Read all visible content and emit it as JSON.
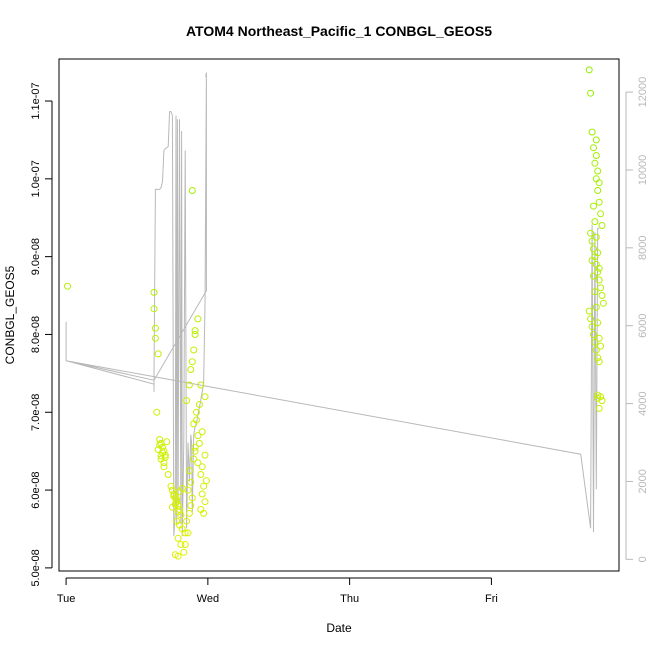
{
  "chart_data": {
    "type": "scatter",
    "title": "ATOM4 Northeast_Pacific_1 CONBGL_GEOS5",
    "xlabel": "Date",
    "ylabel": "CONBGL_GEOS5",
    "x_ticks": [
      "Tue",
      "Wed",
      "Thu",
      "Fri"
    ],
    "x_units": "days since Tue 00:00",
    "xlim": [
      -0.05,
      3.9
    ],
    "y_ticks": [
      "5.0e-08",
      "6.0e-08",
      "7.0e-08",
      "8.0e-08",
      "9.0e-08",
      "1.0e-07",
      "1.1e-07"
    ],
    "y_tick_values": [
      5e-08,
      6e-08,
      7e-08,
      8e-08,
      9e-08,
      1e-07,
      1.1e-07
    ],
    "ylim": [
      4.96e-08,
      1.154e-07
    ],
    "y2_ticks": [
      "0",
      "2000",
      "4000",
      "6000",
      "8000",
      "10000",
      "12000"
    ],
    "y2_tick_values": [
      0,
      2000,
      4000,
      6000,
      8000,
      10000,
      12000
    ],
    "y2lim": [
      -300,
      12850
    ],
    "colors": {
      "points_low": "#e0f000",
      "points_high": "#90f000",
      "altitude_line": "#b8b8b8",
      "right_axis": "#b8b8b8"
    },
    "series": [
      {
        "name": "CONBGL_GEOS5",
        "x": [
          0.01,
          0.62,
          0.62,
          0.63,
          0.63,
          0.65,
          0.64,
          0.66,
          0.67,
          0.68,
          0.69,
          0.7,
          0.67,
          0.69,
          0.71,
          0.66,
          0.68,
          0.7,
          0.72,
          0.65,
          0.67,
          0.69,
          0.74,
          0.75,
          0.76,
          0.77,
          0.78,
          0.79,
          0.8,
          0.76,
          0.78,
          0.8,
          0.82,
          0.75,
          0.77,
          0.79,
          0.81,
          0.78,
          0.8,
          0.82,
          0.84,
          0.79,
          0.81,
          0.83,
          0.77,
          0.79,
          0.84,
          0.86,
          0.85,
          0.87,
          0.88,
          0.89,
          0.86,
          0.88,
          0.87,
          0.9,
          0.91,
          0.93,
          0.9,
          0.92,
          0.94,
          0.91,
          0.93,
          0.95,
          0.97,
          0.96,
          0.98,
          0.95,
          0.97,
          0.99,
          0.96,
          0.98,
          0.94,
          0.96,
          0.92,
          0.85,
          0.87,
          0.88,
          0.89,
          0.9,
          0.91,
          0.93,
          0.95,
          0.98,
          0.89,
          0.91,
          3.69,
          3.7,
          3.71,
          3.72,
          3.73,
          3.74,
          3.75,
          3.76,
          3.77,
          3.78,
          3.7,
          3.71,
          3.72,
          3.73,
          3.74,
          3.75,
          3.76,
          3.77,
          3.78,
          3.79,
          3.69,
          3.7,
          3.71,
          3.72,
          3.73,
          3.74,
          3.75,
          3.76,
          3.77,
          3.78,
          3.71,
          3.72,
          3.73,
          3.74,
          3.75,
          3.76,
          3.77,
          3.72,
          3.73,
          3.74,
          3.75,
          3.76,
          3.74,
          3.75,
          3.76,
          3.74,
          3.75,
          3.75,
          3.76
        ],
        "y": [
          8.62e-08,
          8.54e-08,
          8.33e-08,
          8.08e-08,
          7.95e-08,
          7.75e-08,
          7e-08,
          6.65e-08,
          6.6e-08,
          6.55e-08,
          6.5e-08,
          6.45e-08,
          6.4e-08,
          6.35e-08,
          6.62e-08,
          6.58e-08,
          6.48e-08,
          6.42e-08,
          6.2e-08,
          6.52e-08,
          6.44e-08,
          6.3e-08,
          6.05e-08,
          6e-08,
          5.95e-08,
          5.9e-08,
          5.85e-08,
          5.8e-08,
          5.75e-08,
          5.92e-08,
          5.88e-08,
          5.98e-08,
          6.02e-08,
          5.78e-08,
          5.82e-08,
          5.72e-08,
          5.68e-08,
          5.6e-08,
          5.55e-08,
          5.5e-08,
          5.45e-08,
          5.38e-08,
          5.3e-08,
          5.2e-08,
          5.17e-08,
          5.15e-08,
          5.3e-08,
          5.45e-08,
          5.6e-08,
          5.7e-08,
          5.8e-08,
          5.9e-08,
          6e-08,
          6.1e-08,
          6.25e-08,
          6.4e-08,
          6.55e-08,
          6.7e-08,
          6.85e-08,
          7e-08,
          7.1e-08,
          6.5e-08,
          6.35e-08,
          6.2e-08,
          6.05e-08,
          5.95e-08,
          5.85e-08,
          5.75e-08,
          5.7e-08,
          6.12e-08,
          6.3e-08,
          6.45e-08,
          6.6e-08,
          6.75e-08,
          6.9e-08,
          7.15e-08,
          7.35e-08,
          7.55e-08,
          7.65e-08,
          7.8e-08,
          8.05e-08,
          8.2e-08,
          7.35e-08,
          7.2e-08,
          9.85e-08,
          8e-08,
          1.14e-07,
          1.11e-07,
          1.06e-07,
          1.04e-07,
          1.02e-07,
          1e-07,
          9.85e-08,
          9.7e-08,
          9.55e-08,
          9.4e-08,
          9.3e-08,
          9.2e-08,
          9.1e-08,
          9e-08,
          8.9e-08,
          8.8e-08,
          8.7e-08,
          8.6e-08,
          8.5e-08,
          8.4e-08,
          8.3e-08,
          8.2e-08,
          8.1e-08,
          8e-08,
          7.9e-08,
          7.8e-08,
          7.7e-08,
          7.65e-08,
          7.2e-08,
          7.15e-08,
          8.95e-08,
          8.75e-08,
          8.55e-08,
          8.35e-08,
          8.15e-08,
          7.95e-08,
          7.85e-08,
          9.65e-08,
          9.45e-08,
          9.25e-08,
          9.05e-08,
          8.85e-08,
          1.05e-07,
          1.01e-07,
          9.95e-08,
          1.03e-07,
          7.18e-08,
          7.22e-08,
          7.05e-08
        ],
        "marker": "open-circle"
      },
      {
        "name": "altitude",
        "axis": "right",
        "x": [
          0.0,
          0.0,
          0.62,
          0.62,
          0.62,
          0.63,
          0.64,
          0.66,
          0.67,
          0.68,
          0.69,
          0.7,
          0.72,
          0.73,
          0.74,
          0.75,
          0.76,
          0.77,
          0.775,
          0.78,
          0.785,
          0.79,
          0.8,
          0.81,
          0.815,
          0.82,
          0.83,
          0.84,
          0.85,
          0.86,
          0.87,
          0.88,
          0.885,
          0.89,
          0.9,
          0.91,
          0.92,
          0.93,
          0.94,
          0.95,
          0.96,
          0.97,
          0.98,
          0.99,
          0.985,
          0.99,
          0.99,
          0.62,
          0.0,
          3.63,
          3.63,
          3.7,
          3.71,
          3.72,
          3.73,
          3.74,
          3.75,
          3.76
        ],
        "y": [
          6100,
          5100,
          4500,
          4300,
          4700,
          9500,
          9500,
          9500,
          9550,
          9700,
          10500,
          10550,
          10600,
          11500,
          11500,
          11400,
          600,
          1200,
          11400,
          900,
          11300,
          1400,
          11300,
          900,
          11000,
          600,
          3000,
          10500,
          800,
          3000,
          2000,
          3200,
          3000,
          1200,
          3200,
          3400,
          3500,
          3700,
          3900,
          4100,
          4300,
          4500,
          6500,
          12500,
          12400,
          12400,
          6900,
          4600,
          5100,
          2700,
          2700,
          800,
          8600,
          700,
          8400,
          1800,
          8500,
          8500
        ],
        "line": true
      }
    ]
  }
}
